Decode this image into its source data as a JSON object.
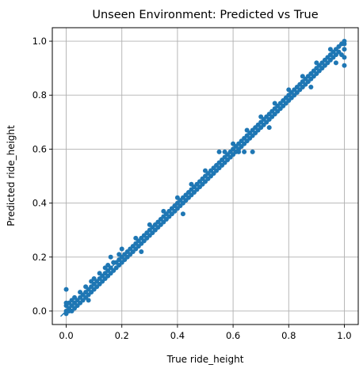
{
  "chart_data": {
    "type": "scatter",
    "title": "Unseen Environment: Predicted vs True",
    "xlabel": "True ride_height",
    "ylabel": "Predicted ride_height",
    "xlim": [
      -0.05,
      1.05
    ],
    "ylim": [
      -0.05,
      1.05
    ],
    "x_ticks": [
      0.0,
      0.2,
      0.4,
      0.6,
      0.8,
      1.0
    ],
    "y_ticks": [
      0.0,
      0.2,
      0.4,
      0.6,
      0.8,
      1.0
    ],
    "x_tick_labels": [
      "0.0",
      "0.2",
      "0.4",
      "0.6",
      "0.8",
      "1.0"
    ],
    "y_tick_labels": [
      "0.0",
      "0.2",
      "0.4",
      "0.6",
      "0.8",
      "1.0"
    ],
    "grid": true,
    "legend": "none",
    "point_color": "#1f77b4",
    "series": [
      {
        "kind": "points",
        "points": [
          [
            0.0,
            0.0
          ],
          [
            0.0,
            0.02
          ],
          [
            0.0,
            0.03
          ],
          [
            0.0,
            0.08
          ],
          [
            0.0,
            -0.01
          ],
          [
            0.01,
            0.0
          ],
          [
            0.01,
            0.01
          ],
          [
            0.01,
            0.03
          ],
          [
            0.02,
            0.0
          ],
          [
            0.02,
            0.02
          ],
          [
            0.02,
            0.04
          ],
          [
            0.03,
            0.01
          ],
          [
            0.03,
            0.03
          ],
          [
            0.03,
            0.05
          ],
          [
            0.04,
            0.02
          ],
          [
            0.04,
            0.04
          ],
          [
            0.05,
            0.03
          ],
          [
            0.05,
            0.05
          ],
          [
            0.05,
            0.07
          ],
          [
            0.06,
            0.04
          ],
          [
            0.06,
            0.06
          ],
          [
            0.07,
            0.05
          ],
          [
            0.07,
            0.07
          ],
          [
            0.07,
            0.09
          ],
          [
            0.08,
            0.06
          ],
          [
            0.08,
            0.08
          ],
          [
            0.09,
            0.07
          ],
          [
            0.09,
            0.09
          ],
          [
            0.09,
            0.11
          ],
          [
            0.1,
            0.08
          ],
          [
            0.1,
            0.1
          ],
          [
            0.1,
            0.12
          ],
          [
            0.11,
            0.09
          ],
          [
            0.11,
            0.11
          ],
          [
            0.12,
            0.1
          ],
          [
            0.12,
            0.12
          ],
          [
            0.12,
            0.14
          ],
          [
            0.13,
            0.11
          ],
          [
            0.13,
            0.13
          ],
          [
            0.14,
            0.12
          ],
          [
            0.14,
            0.14
          ],
          [
            0.14,
            0.16
          ],
          [
            0.15,
            0.13
          ],
          [
            0.15,
            0.15
          ],
          [
            0.15,
            0.17
          ],
          [
            0.16,
            0.14
          ],
          [
            0.16,
            0.16
          ],
          [
            0.17,
            0.15
          ],
          [
            0.17,
            0.18
          ],
          [
            0.18,
            0.16
          ],
          [
            0.18,
            0.18
          ],
          [
            0.19,
            0.17
          ],
          [
            0.19,
            0.19
          ],
          [
            0.19,
            0.21
          ],
          [
            0.2,
            0.18
          ],
          [
            0.2,
            0.2
          ],
          [
            0.2,
            0.23
          ],
          [
            0.21,
            0.19
          ],
          [
            0.21,
            0.21
          ],
          [
            0.22,
            0.2
          ],
          [
            0.22,
            0.22
          ],
          [
            0.23,
            0.21
          ],
          [
            0.23,
            0.23
          ],
          [
            0.24,
            0.22
          ],
          [
            0.24,
            0.24
          ],
          [
            0.25,
            0.23
          ],
          [
            0.25,
            0.25
          ],
          [
            0.25,
            0.27
          ],
          [
            0.26,
            0.24
          ],
          [
            0.26,
            0.26
          ],
          [
            0.27,
            0.25
          ],
          [
            0.27,
            0.27
          ],
          [
            0.28,
            0.26
          ],
          [
            0.28,
            0.28
          ],
          [
            0.29,
            0.27
          ],
          [
            0.29,
            0.29
          ],
          [
            0.3,
            0.28
          ],
          [
            0.3,
            0.3
          ],
          [
            0.3,
            0.32
          ],
          [
            0.31,
            0.29
          ],
          [
            0.31,
            0.31
          ],
          [
            0.32,
            0.3
          ],
          [
            0.32,
            0.32
          ],
          [
            0.33,
            0.31
          ],
          [
            0.33,
            0.33
          ],
          [
            0.34,
            0.32
          ],
          [
            0.34,
            0.34
          ],
          [
            0.35,
            0.33
          ],
          [
            0.35,
            0.35
          ],
          [
            0.35,
            0.37
          ],
          [
            0.36,
            0.34
          ],
          [
            0.36,
            0.36
          ],
          [
            0.37,
            0.35
          ],
          [
            0.37,
            0.37
          ],
          [
            0.38,
            0.36
          ],
          [
            0.38,
            0.38
          ],
          [
            0.39,
            0.37
          ],
          [
            0.39,
            0.39
          ],
          [
            0.4,
            0.38
          ],
          [
            0.4,
            0.4
          ],
          [
            0.4,
            0.42
          ],
          [
            0.41,
            0.39
          ],
          [
            0.41,
            0.41
          ],
          [
            0.42,
            0.4
          ],
          [
            0.42,
            0.42
          ],
          [
            0.43,
            0.41
          ],
          [
            0.43,
            0.43
          ],
          [
            0.44,
            0.42
          ],
          [
            0.44,
            0.44
          ],
          [
            0.45,
            0.43
          ],
          [
            0.45,
            0.45
          ],
          [
            0.45,
            0.47
          ],
          [
            0.46,
            0.44
          ],
          [
            0.46,
            0.46
          ],
          [
            0.47,
            0.45
          ],
          [
            0.47,
            0.47
          ],
          [
            0.48,
            0.46
          ],
          [
            0.48,
            0.48
          ],
          [
            0.49,
            0.47
          ],
          [
            0.49,
            0.49
          ],
          [
            0.5,
            0.48
          ],
          [
            0.5,
            0.5
          ],
          [
            0.5,
            0.52
          ],
          [
            0.51,
            0.49
          ],
          [
            0.51,
            0.51
          ],
          [
            0.52,
            0.5
          ],
          [
            0.52,
            0.52
          ],
          [
            0.53,
            0.51
          ],
          [
            0.53,
            0.53
          ],
          [
            0.54,
            0.52
          ],
          [
            0.54,
            0.54
          ],
          [
            0.55,
            0.53
          ],
          [
            0.55,
            0.55
          ],
          [
            0.55,
            0.59
          ],
          [
            0.56,
            0.54
          ],
          [
            0.56,
            0.56
          ],
          [
            0.57,
            0.55
          ],
          [
            0.57,
            0.57
          ],
          [
            0.57,
            0.59
          ],
          [
            0.58,
            0.56
          ],
          [
            0.58,
            0.58
          ],
          [
            0.59,
            0.57
          ],
          [
            0.59,
            0.59
          ],
          [
            0.6,
            0.58
          ],
          [
            0.6,
            0.6
          ],
          [
            0.6,
            0.62
          ],
          [
            0.61,
            0.59
          ],
          [
            0.61,
            0.61
          ],
          [
            0.62,
            0.6
          ],
          [
            0.62,
            0.62
          ],
          [
            0.63,
            0.61
          ],
          [
            0.63,
            0.63
          ],
          [
            0.64,
            0.62
          ],
          [
            0.64,
            0.64
          ],
          [
            0.65,
            0.63
          ],
          [
            0.65,
            0.65
          ],
          [
            0.65,
            0.67
          ],
          [
            0.66,
            0.64
          ],
          [
            0.66,
            0.66
          ],
          [
            0.67,
            0.65
          ],
          [
            0.67,
            0.67
          ],
          [
            0.68,
            0.66
          ],
          [
            0.68,
            0.68
          ],
          [
            0.69,
            0.67
          ],
          [
            0.69,
            0.69
          ],
          [
            0.7,
            0.68
          ],
          [
            0.7,
            0.7
          ],
          [
            0.7,
            0.72
          ],
          [
            0.71,
            0.69
          ],
          [
            0.71,
            0.71
          ],
          [
            0.72,
            0.7
          ],
          [
            0.72,
            0.72
          ],
          [
            0.73,
            0.71
          ],
          [
            0.73,
            0.73
          ],
          [
            0.74,
            0.72
          ],
          [
            0.74,
            0.74
          ],
          [
            0.75,
            0.73
          ],
          [
            0.75,
            0.75
          ],
          [
            0.75,
            0.77
          ],
          [
            0.76,
            0.74
          ],
          [
            0.76,
            0.76
          ],
          [
            0.77,
            0.75
          ],
          [
            0.77,
            0.77
          ],
          [
            0.78,
            0.76
          ],
          [
            0.78,
            0.78
          ],
          [
            0.79,
            0.77
          ],
          [
            0.79,
            0.79
          ],
          [
            0.8,
            0.78
          ],
          [
            0.8,
            0.8
          ],
          [
            0.8,
            0.82
          ],
          [
            0.81,
            0.79
          ],
          [
            0.81,
            0.81
          ],
          [
            0.82,
            0.8
          ],
          [
            0.82,
            0.82
          ],
          [
            0.83,
            0.81
          ],
          [
            0.83,
            0.83
          ],
          [
            0.84,
            0.82
          ],
          [
            0.84,
            0.84
          ],
          [
            0.85,
            0.83
          ],
          [
            0.85,
            0.85
          ],
          [
            0.85,
            0.87
          ],
          [
            0.86,
            0.84
          ],
          [
            0.86,
            0.86
          ],
          [
            0.87,
            0.85
          ],
          [
            0.87,
            0.87
          ],
          [
            0.88,
            0.86
          ],
          [
            0.88,
            0.88
          ],
          [
            0.89,
            0.87
          ],
          [
            0.89,
            0.89
          ],
          [
            0.9,
            0.88
          ],
          [
            0.9,
            0.9
          ],
          [
            0.9,
            0.92
          ],
          [
            0.91,
            0.89
          ],
          [
            0.91,
            0.91
          ],
          [
            0.92,
            0.9
          ],
          [
            0.92,
            0.92
          ],
          [
            0.93,
            0.91
          ],
          [
            0.93,
            0.93
          ],
          [
            0.94,
            0.92
          ],
          [
            0.94,
            0.94
          ],
          [
            0.95,
            0.93
          ],
          [
            0.95,
            0.95
          ],
          [
            0.95,
            0.97
          ],
          [
            0.96,
            0.94
          ],
          [
            0.96,
            0.96
          ],
          [
            0.97,
            0.95
          ],
          [
            0.97,
            0.97
          ],
          [
            0.98,
            0.96
          ],
          [
            0.98,
            0.98
          ],
          [
            0.99,
            0.95
          ],
          [
            0.99,
            0.99
          ],
          [
            1.0,
            0.91
          ],
          [
            1.0,
            0.94
          ],
          [
            1.0,
            0.97
          ],
          [
            1.0,
            0.99
          ],
          [
            1.0,
            1.0
          ],
          [
            0.62,
            0.59
          ],
          [
            0.64,
            0.59
          ],
          [
            0.67,
            0.59
          ],
          [
            0.16,
            0.2
          ],
          [
            0.42,
            0.36
          ],
          [
            0.08,
            0.04
          ],
          [
            0.27,
            0.22
          ],
          [
            0.73,
            0.68
          ],
          [
            0.88,
            0.83
          ],
          [
            0.97,
            0.92
          ]
        ]
      },
      {
        "kind": "identity-line",
        "from": [
          -0.02,
          -0.02
        ],
        "to": [
          1.0,
          1.0
        ]
      }
    ]
  }
}
